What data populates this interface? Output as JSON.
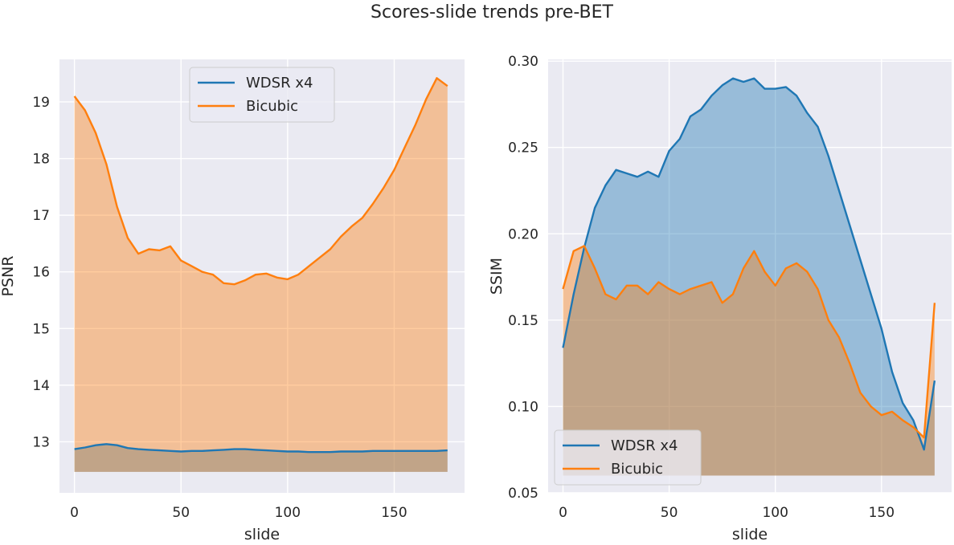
{
  "figure_title": "Scores-slide trends pre-BET",
  "colors": {
    "wdsr": "#1f77b4",
    "bicubic": "#ff7f0e",
    "plot_bg": "#eaeaf2",
    "grid": "#ffffff"
  },
  "chart_data": [
    {
      "type": "area",
      "xlabel": "slide",
      "ylabel": "PSNR",
      "xlim": [
        -7,
        183
      ],
      "ylim": [
        12.1,
        19.75
      ],
      "fill_baseline": 12.47,
      "xticks": [
        0,
        50,
        100,
        150
      ],
      "yticks": [
        13,
        14,
        15,
        16,
        17,
        18,
        19
      ],
      "grid": true,
      "legend": "top-center",
      "x": [
        0,
        5,
        10,
        15,
        20,
        25,
        30,
        35,
        40,
        45,
        50,
        55,
        60,
        65,
        70,
        75,
        80,
        85,
        90,
        95,
        100,
        105,
        110,
        115,
        120,
        125,
        130,
        135,
        140,
        145,
        150,
        155,
        160,
        165,
        170,
        175
      ],
      "series": [
        {
          "name": "WDSR x4",
          "values": [
            12.87,
            12.9,
            12.94,
            12.96,
            12.94,
            12.89,
            12.87,
            12.86,
            12.85,
            12.84,
            12.83,
            12.84,
            12.84,
            12.85,
            12.86,
            12.87,
            12.87,
            12.86,
            12.85,
            12.84,
            12.83,
            12.83,
            12.82,
            12.82,
            12.82,
            12.83,
            12.83,
            12.83,
            12.84,
            12.84,
            12.84,
            12.84,
            12.84,
            12.84,
            12.84,
            12.85
          ]
        },
        {
          "name": "Bicubic",
          "values": [
            19.1,
            18.85,
            18.45,
            17.9,
            17.15,
            16.6,
            16.32,
            16.4,
            16.38,
            16.45,
            16.2,
            16.1,
            16.0,
            15.95,
            15.8,
            15.78,
            15.85,
            15.95,
            15.97,
            15.9,
            15.87,
            15.95,
            16.1,
            16.25,
            16.4,
            16.62,
            16.8,
            16.95,
            17.2,
            17.48,
            17.8,
            18.2,
            18.6,
            19.05,
            19.42,
            19.28
          ]
        }
      ]
    },
    {
      "type": "area",
      "xlabel": "slide",
      "ylabel": "SSIM",
      "xlim": [
        -7,
        183
      ],
      "ylim": [
        0.05,
        0.301
      ],
      "fill_baseline": 0.06,
      "xticks": [
        0,
        50,
        100,
        150
      ],
      "yticks": [
        0.05,
        0.1,
        0.15,
        0.2,
        0.25,
        0.3
      ],
      "ytick_labels": [
        "0.05",
        "0.10",
        "0.15",
        "0.20",
        "0.25",
        "0.30"
      ],
      "grid": true,
      "legend": "bottom-left",
      "x": [
        0,
        5,
        10,
        15,
        20,
        25,
        30,
        35,
        40,
        45,
        50,
        55,
        60,
        65,
        70,
        75,
        80,
        85,
        90,
        95,
        100,
        105,
        110,
        115,
        120,
        125,
        130,
        135,
        140,
        145,
        150,
        155,
        160,
        165,
        170,
        175
      ],
      "series": [
        {
          "name": "WDSR x4",
          "values": [
            0.134,
            0.165,
            0.192,
            0.215,
            0.228,
            0.237,
            0.235,
            0.233,
            0.236,
            0.233,
            0.248,
            0.255,
            0.268,
            0.272,
            0.28,
            0.286,
            0.29,
            0.288,
            0.29,
            0.284,
            0.284,
            0.285,
            0.28,
            0.27,
            0.262,
            0.245,
            0.225,
            0.205,
            0.185,
            0.165,
            0.145,
            0.12,
            0.102,
            0.092,
            0.075,
            0.115
          ]
        },
        {
          "name": "Bicubic",
          "values": [
            0.168,
            0.19,
            0.193,
            0.18,
            0.165,
            0.162,
            0.17,
            0.17,
            0.165,
            0.172,
            0.168,
            0.165,
            0.168,
            0.17,
            0.172,
            0.16,
            0.165,
            0.18,
            0.19,
            0.178,
            0.17,
            0.18,
            0.183,
            0.178,
            0.168,
            0.15,
            0.14,
            0.125,
            0.108,
            0.1,
            0.095,
            0.097,
            0.092,
            0.088,
            0.082,
            0.16
          ]
        }
      ]
    }
  ]
}
